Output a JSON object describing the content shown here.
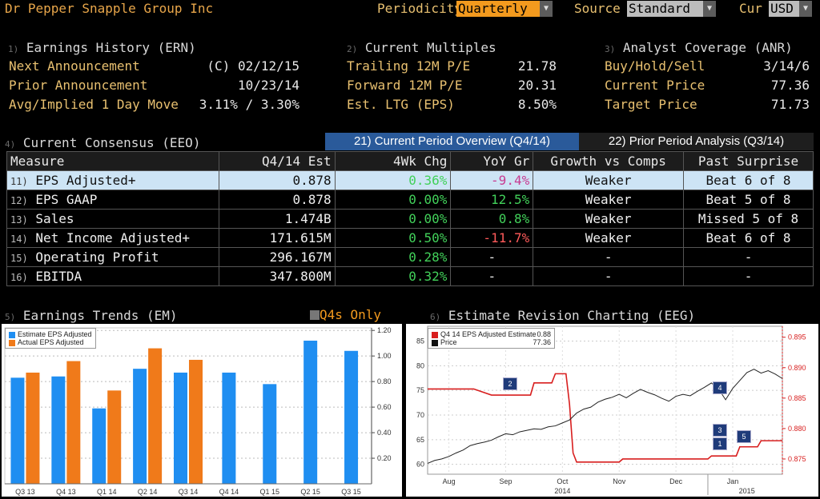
{
  "header": {
    "title": "Dr Pepper Snapple Group Inc",
    "periodicity_label": "Periodicity",
    "periodicity_value": "Quarterly",
    "source_label": "Source",
    "source_value": "Standard",
    "cur_label": "Cur",
    "cur_value": "USD"
  },
  "earnings_history": {
    "num": "1)",
    "title": "Earnings History (ERN)",
    "rows": [
      {
        "label": "Next Announcement",
        "value": "(C)  02/12/15"
      },
      {
        "label": "Prior Announcement",
        "value": "10/23/14"
      },
      {
        "label": "Avg/Implied 1 Day Move",
        "value": "3.11% / 3.30%"
      }
    ]
  },
  "current_multiples": {
    "num": "2)",
    "title": "Current Multiples",
    "rows": [
      {
        "label": "Trailing 12M P/E",
        "value": "21.78"
      },
      {
        "label": "Forward 12M P/E",
        "value": "20.31"
      },
      {
        "label": "Est. LTG (EPS)",
        "value": "8.50%"
      }
    ]
  },
  "analyst_coverage": {
    "num": "3)",
    "title": "Analyst Coverage (ANR)",
    "rows": [
      {
        "label": "Buy/Hold/Sell",
        "value": "3/14/6"
      },
      {
        "label": "Current Price",
        "value": "77.36"
      },
      {
        "label": "Target Price",
        "value": "71.73"
      }
    ]
  },
  "consensus": {
    "num": "4)",
    "title": "Current Consensus (EEO)",
    "tab_current": "21) Current Period Overview (Q4/14)",
    "tab_prior": "22) Prior Period Analysis (Q3/14)",
    "columns": [
      "Measure",
      "Q4/14 Est",
      "4Wk Chg",
      "YoY Gr",
      "Growth vs Comps",
      "Past Surprise"
    ],
    "rows": [
      {
        "num": "11)",
        "measure": "EPS Adjusted+",
        "est": "0.878",
        "chg": "0.36%",
        "yoy": "-9.4%",
        "growth": "Weaker",
        "surprise": "Beat 6 of 8"
      },
      {
        "num": "12)",
        "measure": "EPS GAAP",
        "est": "0.878",
        "chg": "0.00%",
        "yoy": "12.5%",
        "growth": "Weaker",
        "surprise": "Beat 5 of 8"
      },
      {
        "num": "13)",
        "measure": "Sales",
        "est": "1.474B",
        "chg": "0.00%",
        "yoy": "0.8%",
        "growth": "Weaker",
        "surprise": "Missed 5 of 8"
      },
      {
        "num": "14)",
        "measure": "Net Income Adjusted+",
        "est": "171.615M",
        "chg": "0.50%",
        "yoy": "-11.7%",
        "growth": "Weaker",
        "surprise": "Beat 6 of 8"
      },
      {
        "num": "15)",
        "measure": "Operating Profit",
        "est": "296.167M",
        "chg": "0.28%",
        "yoy": "-",
        "growth": "-",
        "surprise": "-"
      },
      {
        "num": "16)",
        "measure": "EBITDA",
        "est": "347.800M",
        "chg": "0.32%",
        "yoy": "-",
        "growth": "-",
        "surprise": "-"
      }
    ]
  },
  "earnings_trends": {
    "num": "5)",
    "title": "Earnings Trends (EM)",
    "toggle_label": "Q4s Only"
  },
  "estimate_revision": {
    "num": "6)",
    "title": "Estimate Revision Charting (EEG)"
  },
  "colors": {
    "estimate": "#1f8ef1",
    "actual": "#f07a1a",
    "price": "#222222",
    "estimate_line": "#d81e1e"
  },
  "chart_data": [
    {
      "type": "bar",
      "categories": [
        "Q3 13",
        "Q4 13",
        "Q1 14",
        "Q2 14",
        "Q3 14",
        "Q4 14",
        "Q1 15",
        "Q2 15",
        "Q3 15"
      ],
      "series": [
        {
          "name": "Estimate EPS Adjusted",
          "values": [
            0.83,
            0.84,
            0.59,
            0.9,
            0.87,
            0.87,
            0.78,
            1.12,
            1.04
          ]
        },
        {
          "name": "Actual EPS Adjusted",
          "values": [
            0.87,
            0.96,
            0.73,
            1.06,
            0.97,
            null,
            null,
            null,
            null
          ]
        }
      ],
      "yticks": [
        "0.20",
        "0.40",
        "0.60",
        "0.80",
        "1.00",
        "1.20"
      ],
      "ylim": [
        0,
        1.22
      ]
    },
    {
      "type": "line",
      "legend": [
        {
          "name": "Q4 14 EPS Adjusted Estimate",
          "value": "0.88"
        },
        {
          "name": "Price",
          "value": "77.36"
        }
      ],
      "x_labels": [
        "Aug",
        "Sep",
        "Oct",
        "Nov",
        "Dec",
        "Jan"
      ],
      "year_labels": [
        "2014",
        "2015"
      ],
      "left_ticks": [
        "60",
        "65",
        "70",
        "75",
        "80",
        "85"
      ],
      "right_ticks": [
        "0.875",
        "0.880",
        "0.885",
        "0.890",
        "0.895"
      ],
      "left_ylim": [
        58,
        88
      ],
      "right_ylim": [
        0.8725,
        0.8968
      ],
      "estimate_series": [
        [
          0,
          0.8865
        ],
        [
          13,
          0.8865
        ],
        [
          18,
          0.8855
        ],
        [
          29,
          0.8855
        ],
        [
          30,
          0.8875
        ],
        [
          35,
          0.8875
        ],
        [
          36,
          0.889
        ],
        [
          39,
          0.889
        ],
        [
          40,
          0.884
        ],
        [
          41,
          0.876
        ],
        [
          42,
          0.8745
        ],
        [
          54,
          0.8745
        ],
        [
          55,
          0.875
        ],
        [
          79,
          0.875
        ],
        [
          80,
          0.8755
        ],
        [
          87,
          0.8755
        ],
        [
          88,
          0.877
        ],
        [
          93,
          0.877
        ],
        [
          94,
          0.878
        ],
        [
          100,
          0.878
        ]
      ],
      "price_series": [
        [
          0,
          60.2
        ],
        [
          2,
          60.8
        ],
        [
          4,
          61.1
        ],
        [
          6,
          61.6
        ],
        [
          8,
          62.3
        ],
        [
          10,
          62.9
        ],
        [
          12,
          63.8
        ],
        [
          14,
          64.2
        ],
        [
          16,
          64.5
        ],
        [
          18,
          64.9
        ],
        [
          20,
          65.6
        ],
        [
          22,
          66.2
        ],
        [
          24,
          66.0
        ],
        [
          26,
          66.6
        ],
        [
          28,
          66.9
        ],
        [
          30,
          67.2
        ],
        [
          32,
          67.1
        ],
        [
          34,
          67.6
        ],
        [
          36,
          67.8
        ],
        [
          38,
          68.4
        ],
        [
          40,
          69.0
        ],
        [
          42,
          70.4
        ],
        [
          44,
          71.2
        ],
        [
          46,
          71.6
        ],
        [
          48,
          72.6
        ],
        [
          50,
          73.2
        ],
        [
          52,
          73.6
        ],
        [
          54,
          74.2
        ],
        [
          56,
          73.5
        ],
        [
          58,
          74.4
        ],
        [
          60,
          75.2
        ],
        [
          62,
          74.6
        ],
        [
          64,
          74.1
        ],
        [
          66,
          73.4
        ],
        [
          68,
          72.8
        ],
        [
          70,
          73.8
        ],
        [
          72,
          74.2
        ],
        [
          74,
          73.9
        ],
        [
          76,
          74.8
        ],
        [
          78,
          75.6
        ],
        [
          80,
          76.5
        ],
        [
          82,
          75.3
        ],
        [
          84,
          73.1
        ],
        [
          86,
          75.4
        ],
        [
          88,
          77.0
        ],
        [
          90,
          78.6
        ],
        [
          92,
          79.3
        ],
        [
          94,
          78.5
        ],
        [
          96,
          79.0
        ],
        [
          98,
          78.3
        ],
        [
          100,
          77.4
        ]
      ]
    }
  ],
  "revision_flags": [
    "2",
    "4",
    "3",
    "1",
    "5"
  ]
}
